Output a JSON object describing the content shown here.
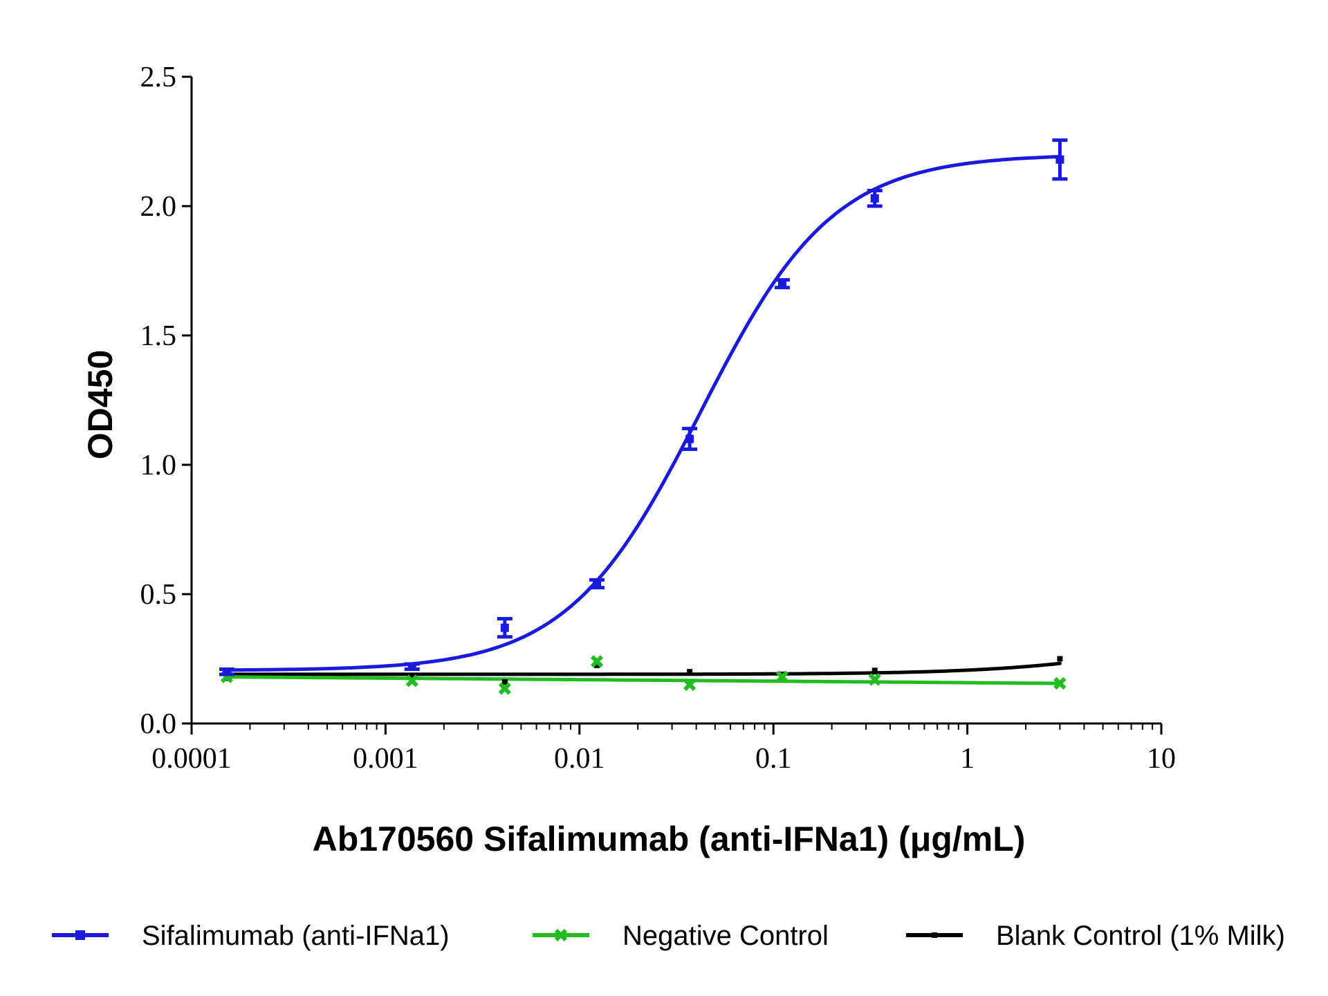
{
  "chart_data": {
    "type": "line",
    "title": "",
    "xlabel": "Ab170560 Sifalimumab (anti-IFNa1) (μg/mL)",
    "ylabel": "OD450",
    "x_scale": "log",
    "xlim": [
      0.0001,
      10
    ],
    "ylim": [
      0,
      2.5
    ],
    "x_ticks": [
      0.0001,
      0.001,
      0.01,
      0.1,
      1,
      10
    ],
    "x_tick_labels": [
      "0.0001",
      "0.001",
      "0.01",
      "0.1",
      "1",
      "10"
    ],
    "y_ticks": [
      0,
      0.5,
      1,
      1.5,
      2,
      2.5
    ],
    "y_tick_labels": [
      "0.0",
      "0.5",
      "1.0",
      "1.5",
      "2.0",
      "2.5"
    ],
    "grid": false,
    "legend_position": "bottom",
    "series": [
      {
        "name": "Sifalimumab (anti-IFNa1)",
        "color": "#1a1adc",
        "marker": "square",
        "points": [
          {
            "x": 0.000152,
            "y": 0.2,
            "err": 0.01
          },
          {
            "x": 0.00137,
            "y": 0.22,
            "err": 0.01
          },
          {
            "x": 0.00412,
            "y": 0.37,
            "err": 0.035
          },
          {
            "x": 0.0123,
            "y": 0.54,
            "err": 0.015
          },
          {
            "x": 0.037,
            "y": 1.1,
            "err": 0.04
          },
          {
            "x": 0.111,
            "y": 1.7,
            "err": 0.015
          },
          {
            "x": 0.333,
            "y": 2.03,
            "err": 0.03
          },
          {
            "x": 3.0,
            "y": 2.18,
            "err": 0.075
          }
        ],
        "fit": {
          "model": "4PL",
          "bottom": 0.205,
          "top": 2.2,
          "ec50": 0.042,
          "hill": 1.27
        }
      },
      {
        "name": "Negative Control",
        "color": "#22bb22",
        "marker": "x",
        "points": [
          {
            "x": 0.000152,
            "y": 0.18
          },
          {
            "x": 0.00137,
            "y": 0.165
          },
          {
            "x": 0.00412,
            "y": 0.135
          },
          {
            "x": 0.0123,
            "y": 0.24
          },
          {
            "x": 0.037,
            "y": 0.15
          },
          {
            "x": 0.111,
            "y": 0.18
          },
          {
            "x": 0.333,
            "y": 0.17
          },
          {
            "x": 3.0,
            "y": 0.155
          }
        ],
        "fit": {
          "model": "linear",
          "y_start": 0.18,
          "y_end": 0.155
        }
      },
      {
        "name": "Blank Control (1% Milk)",
        "color": "#000000",
        "marker": "dash",
        "points": [
          {
            "x": 0.000152,
            "y": 0.175
          },
          {
            "x": 0.00137,
            "y": 0.18
          },
          {
            "x": 0.00412,
            "y": 0.16
          },
          {
            "x": 0.0123,
            "y": 0.225
          },
          {
            "x": 0.037,
            "y": 0.2
          },
          {
            "x": 0.111,
            "y": 0.19
          },
          {
            "x": 0.333,
            "y": 0.205
          },
          {
            "x": 3.0,
            "y": 0.25
          }
        ],
        "fit": {
          "model": "4PL",
          "bottom": 0.19,
          "top": 0.4,
          "ec50": 12.0,
          "hill": 1.0
        }
      }
    ]
  }
}
